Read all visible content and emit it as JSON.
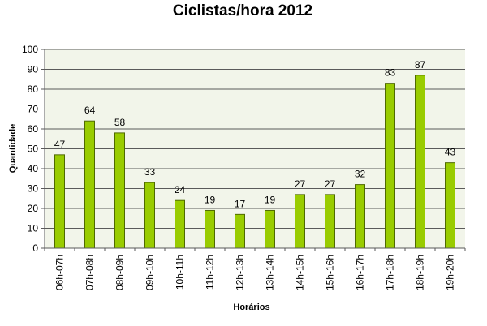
{
  "chart_data": {
    "type": "bar",
    "title": "Ciclistas/hora 2012",
    "xlabel": "Horários",
    "ylabel": "Quantidade",
    "categories": [
      "06h-07h",
      "07h-08h",
      "08h-09h",
      "09h-10h",
      "10h-11h",
      "11h-12h",
      "12h-13h",
      "13h-14h",
      "14h-15h",
      "15h-16h",
      "16h-17h",
      "17h-18h",
      "18h-19h",
      "19h-20h"
    ],
    "values": [
      47,
      64,
      58,
      33,
      24,
      19,
      17,
      19,
      27,
      27,
      32,
      83,
      87,
      43
    ],
    "ylim": [
      0,
      100
    ],
    "yticks": [
      0,
      10,
      20,
      30,
      40,
      50,
      60,
      70,
      80,
      90,
      100
    ],
    "grid": true,
    "legend": "none",
    "colors": {
      "bar_fill": "#99CC00",
      "bar_stroke": "#4F6A00",
      "plot_background": "#F2F5EA",
      "gridline": "#5A5A5A",
      "axis": "#5A5A5A"
    }
  }
}
